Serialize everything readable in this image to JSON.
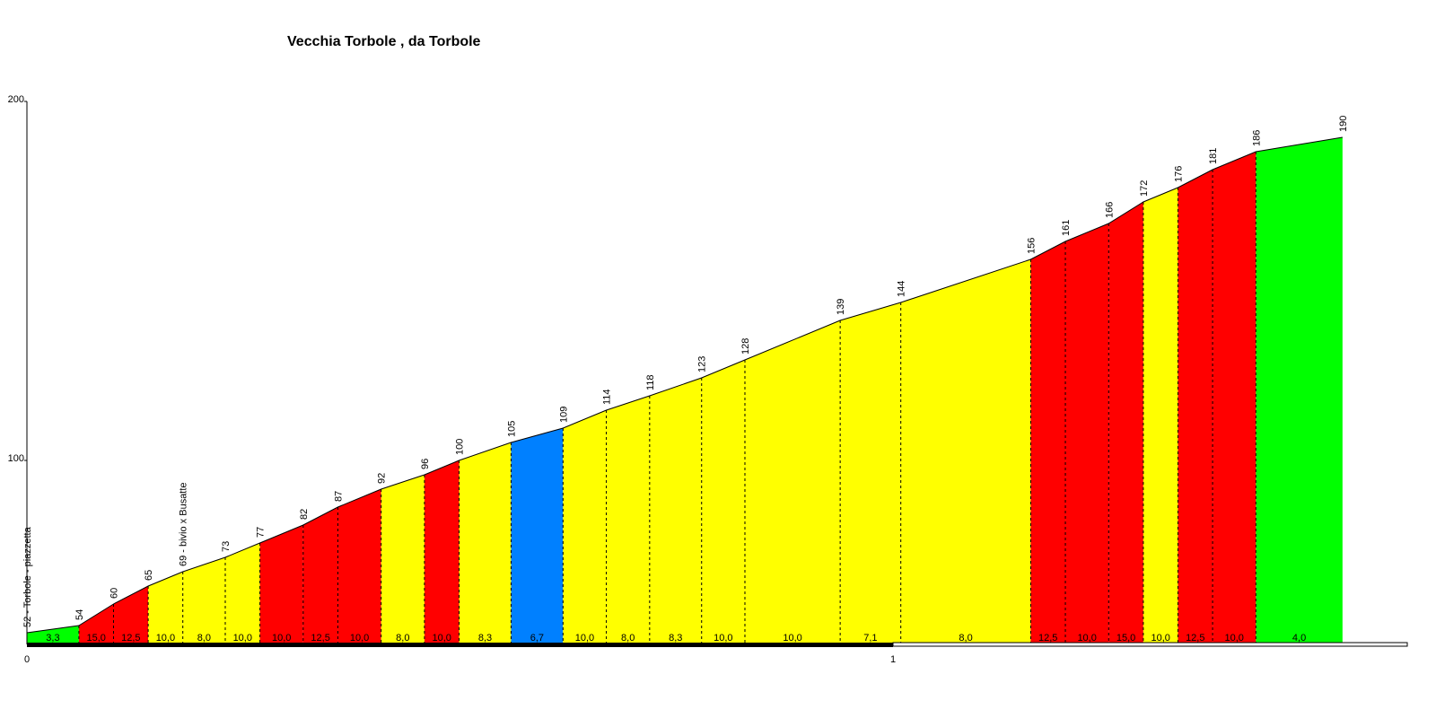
{
  "chart_data": {
    "type": "area",
    "title": "Vecchia Torbole , da Torbole",
    "xlabel": "",
    "ylabel": "",
    "xlim": [
      0,
      1.58
    ],
    "ylim": [
      47,
      200
    ],
    "y_ticks": [
      "100",
      "200"
    ],
    "x_ticks": [
      "0",
      "1"
    ],
    "colors": {
      "green": "#00ff00",
      "red": "#ff0000",
      "yellow": "#ffff00",
      "blue": "#0080ff"
    },
    "points": [
      {
        "x": 0.0,
        "alt": 52,
        "label": "52 - Torbole - piazzetta"
      },
      {
        "x": 0.06,
        "alt": 54,
        "label": "54"
      },
      {
        "x": 0.1,
        "alt": 60,
        "label": "60"
      },
      {
        "x": 0.14,
        "alt": 65,
        "label": "65"
      },
      {
        "x": 0.18,
        "alt": 69,
        "label": "69 - bivio x Busatte"
      },
      {
        "x": 0.229,
        "alt": 73,
        "label": "73"
      },
      {
        "x": 0.269,
        "alt": 77,
        "label": "77"
      },
      {
        "x": 0.319,
        "alt": 82,
        "label": "82"
      },
      {
        "x": 0.359,
        "alt": 87,
        "label": "87"
      },
      {
        "x": 0.409,
        "alt": 92,
        "label": "92"
      },
      {
        "x": 0.459,
        "alt": 96,
        "label": "96"
      },
      {
        "x": 0.499,
        "alt": 100,
        "label": "100"
      },
      {
        "x": 0.559,
        "alt": 105,
        "label": "105"
      },
      {
        "x": 0.619,
        "alt": 109,
        "label": "109"
      },
      {
        "x": 0.669,
        "alt": 114,
        "label": "114"
      },
      {
        "x": 0.719,
        "alt": 118,
        "label": "118"
      },
      {
        "x": 0.779,
        "alt": 123,
        "label": "123"
      },
      {
        "x": 0.829,
        "alt": 128,
        "label": "128"
      },
      {
        "x": 0.939,
        "alt": 139,
        "label": "139"
      },
      {
        "x": 1.009,
        "alt": 144,
        "label": "144"
      },
      {
        "x": 1.159,
        "alt": 156,
        "label": "156"
      },
      {
        "x": 1.199,
        "alt": 161,
        "label": "161"
      },
      {
        "x": 1.249,
        "alt": 166,
        "label": "166"
      },
      {
        "x": 1.289,
        "alt": 172,
        "label": "172"
      },
      {
        "x": 1.329,
        "alt": 176,
        "label": "176"
      },
      {
        "x": 1.369,
        "alt": 181,
        "label": "181"
      },
      {
        "x": 1.419,
        "alt": 186,
        "label": "186"
      },
      {
        "x": 1.519,
        "alt": 190,
        "label": "190"
      }
    ],
    "segments": [
      {
        "gradient": "3,3",
        "color": "green"
      },
      {
        "gradient": "15,0",
        "color": "red"
      },
      {
        "gradient": "12,5",
        "color": "red"
      },
      {
        "gradient": "10,0",
        "color": "yellow"
      },
      {
        "gradient": "8,0",
        "color": "yellow"
      },
      {
        "gradient": "10,0",
        "color": "yellow"
      },
      {
        "gradient": "10,0",
        "color": "red"
      },
      {
        "gradient": "12,5",
        "color": "red"
      },
      {
        "gradient": "10,0",
        "color": "red"
      },
      {
        "gradient": "8,0",
        "color": "yellow"
      },
      {
        "gradient": "10,0",
        "color": "red"
      },
      {
        "gradient": "8,3",
        "color": "yellow"
      },
      {
        "gradient": "6,7",
        "color": "blue"
      },
      {
        "gradient": "10,0",
        "color": "yellow"
      },
      {
        "gradient": "8,0",
        "color": "yellow"
      },
      {
        "gradient": "8,3",
        "color": "yellow"
      },
      {
        "gradient": "10,0",
        "color": "yellow"
      },
      {
        "gradient": "10,0",
        "color": "yellow"
      },
      {
        "gradient": "7,1",
        "color": "yellow"
      },
      {
        "gradient": "8,0",
        "color": "yellow"
      },
      {
        "gradient": "12,5",
        "color": "red"
      },
      {
        "gradient": "10,0",
        "color": "red"
      },
      {
        "gradient": "15,0",
        "color": "red"
      },
      {
        "gradient": "10,0",
        "color": "yellow"
      },
      {
        "gradient": "12,5",
        "color": "red"
      },
      {
        "gradient": "10,0",
        "color": "red"
      },
      {
        "gradient": "4,0",
        "color": "green"
      }
    ]
  }
}
